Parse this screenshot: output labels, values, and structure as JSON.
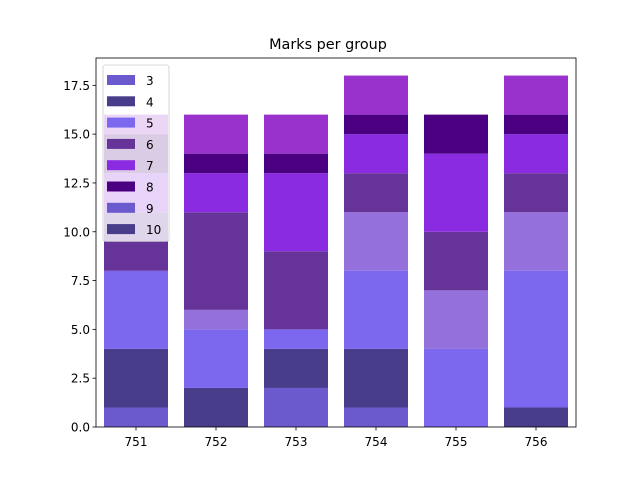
{
  "chart_data": {
    "type": "bar",
    "stacked": true,
    "title": "Marks per group",
    "xlabel": "",
    "ylabel": "",
    "categories": [
      "751",
      "752",
      "753",
      "754",
      "755",
      "756"
    ],
    "ylim": [
      0,
      18.9
    ],
    "yticks": [
      "0.0",
      "2.5",
      "5.0",
      "7.5",
      "10.0",
      "12.5",
      "15.0",
      "17.5"
    ],
    "grid": false,
    "legend_position": "top-left",
    "series": [
      {
        "name": "3",
        "color": "#6a5acd",
        "values": [
          1,
          0,
          2,
          1,
          0,
          0
        ]
      },
      {
        "name": "4",
        "color": "#483d8b",
        "values": [
          3,
          2,
          2,
          3,
          0,
          1
        ]
      },
      {
        "name": "5",
        "color": "#7b68ee",
        "values": [
          4,
          3,
          1,
          4,
          4,
          7
        ]
      },
      {
        "name": "",
        "color": "#9370db",
        "values": [
          0,
          1,
          0,
          3,
          3,
          3
        ]
      },
      {
        "name": "6",
        "color": "#663399",
        "values": [
          3,
          5,
          4,
          2,
          3,
          2
        ]
      },
      {
        "name": "7",
        "color": "#8a2be2",
        "values": [
          2,
          2,
          4,
          2,
          4,
          2
        ]
      },
      {
        "name": "8",
        "color": "#4b0082",
        "values": [
          2,
          1,
          1,
          1,
          2,
          1
        ]
      },
      {
        "name": "",
        "color": "#9932cc",
        "values": [
          1,
          2,
          2,
          2,
          0,
          2
        ]
      }
    ],
    "legend": [
      {
        "label": "3",
        "color": "#6a5acd"
      },
      {
        "label": "4",
        "color": "#483d8b"
      },
      {
        "label": "5",
        "color": "#7b68ee"
      },
      {
        "label": "6",
        "color": "#663399"
      },
      {
        "label": "7",
        "color": "#8a2be2"
      },
      {
        "label": "8",
        "color": "#4b0082"
      },
      {
        "label": "9",
        "color": "#6a5acd"
      },
      {
        "label": "10",
        "color": "#483d8b"
      }
    ]
  }
}
